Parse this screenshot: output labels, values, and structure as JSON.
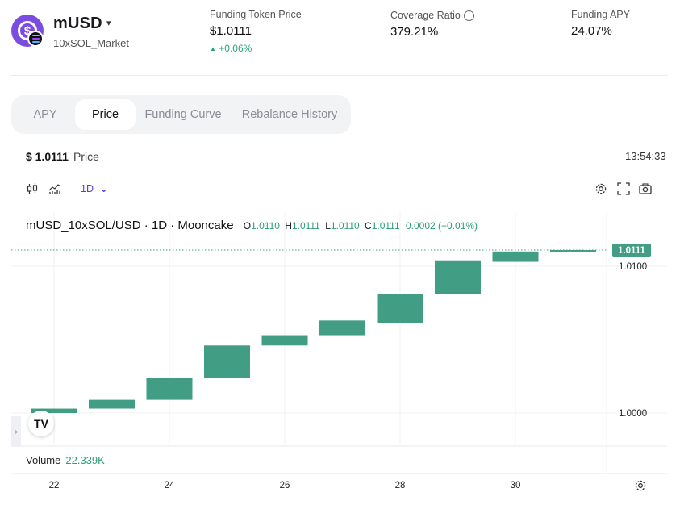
{
  "token": {
    "name": "mUSD",
    "market": "10xSOL_Market",
    "caret": "▾"
  },
  "stats": {
    "funding_price": {
      "label": "Funding Token Price",
      "value": "$1.0111",
      "change": "+0.06%",
      "change_arrow": "▲"
    },
    "coverage": {
      "label": "Coverage Ratio",
      "value": "379.21%",
      "info": "i"
    },
    "apy": {
      "label": "Funding APY",
      "value": "24.07%"
    }
  },
  "tabs": [
    {
      "label": "APY"
    },
    {
      "label": "Price"
    },
    {
      "label": "Funding Curve"
    },
    {
      "label": "Rebalance History"
    }
  ],
  "active_tab": "Price",
  "price_header": {
    "value": "$ 1.0111",
    "label": "Price",
    "time": "13:54:33"
  },
  "toolbar": {
    "interval": "1D",
    "interval_caret": "⌄"
  },
  "legend": {
    "symbol": "mUSD_10xSOL/USD · 1D · Mooncake",
    "o_label": "O",
    "o": "1.0110",
    "h_label": "H",
    "h": "1.0111",
    "l_label": "L",
    "l": "1.0110",
    "c_label": "C",
    "c": "1.0111",
    "change": "0.0002 (+0.01%)"
  },
  "volume": {
    "label": "Volume",
    "value": "22.339K"
  },
  "tv_logo": "TV",
  "side_handle": "›",
  "colors": {
    "up": "#419e85",
    "accent": "#5a3de8",
    "positive_text": "#2a9d77"
  },
  "chart_data": {
    "type": "candlestick",
    "x_ticks": [
      "22",
      "24",
      "26",
      "28",
      "30"
    ],
    "y_ticks": [
      1.0,
      1.01
    ],
    "y_tick_labels": [
      "1.0000",
      "1.0100"
    ],
    "last_price": 1.0111,
    "last_price_label": "1.0111",
    "candles": [
      {
        "day": 22,
        "open": 1.0,
        "close": 1.0003
      },
      {
        "day": 23,
        "open": 1.0003,
        "close": 1.0009
      },
      {
        "day": 24,
        "open": 1.0009,
        "close": 1.0024
      },
      {
        "day": 25,
        "open": 1.0024,
        "close": 1.0046
      },
      {
        "day": 26,
        "open": 1.0046,
        "close": 1.0053
      },
      {
        "day": 27,
        "open": 1.0053,
        "close": 1.0063
      },
      {
        "day": 28,
        "open": 1.0061,
        "close": 1.0081
      },
      {
        "day": 29,
        "open": 1.0081,
        "close": 1.0104
      },
      {
        "day": 30,
        "open": 1.0103,
        "close": 1.011
      },
      {
        "day": 31,
        "open": 1.011,
        "close": 1.0111
      }
    ]
  }
}
